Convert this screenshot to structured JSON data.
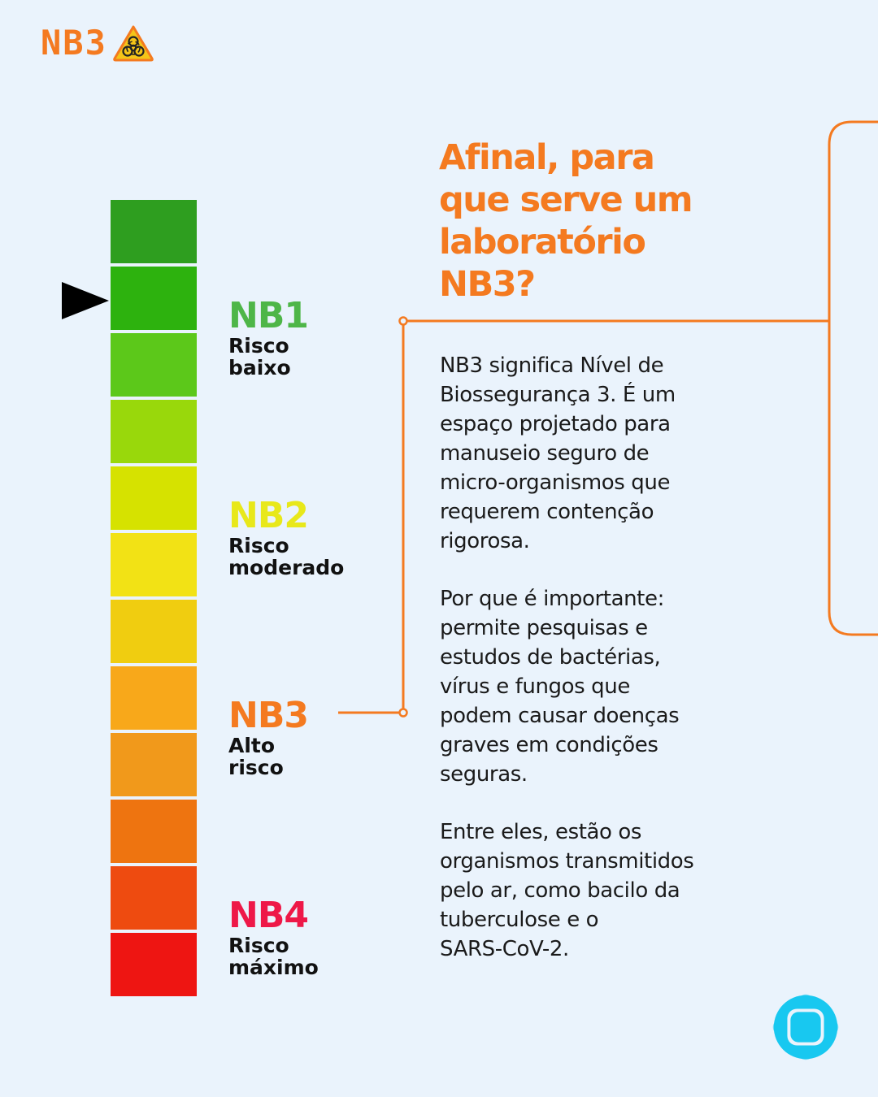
{
  "logo": {
    "text": "NB3",
    "icon": "biohazard-warning-icon",
    "color": "#F47A20"
  },
  "scale": {
    "segments": [
      "#2E9E1F",
      "#2DB20E",
      "#5CC81A",
      "#99D80B",
      "#D6E200",
      "#F2E215",
      "#F0CD10",
      "#F8A81A",
      "#F1991B",
      "#EE7410",
      "#EE4B10",
      "#EE1512"
    ],
    "pointer": "pointer-arrow-icon"
  },
  "levels": [
    {
      "code": "NB1",
      "description": "Risco\nbaixo",
      "color": "#4EB648"
    },
    {
      "code": "NB2",
      "description": "Risco\nmoderado",
      "color": "#E8E81A"
    },
    {
      "code": "NB3",
      "description": "Alto\nrisco",
      "color": "#F47A20"
    },
    {
      "code": "NB4",
      "description": "Risco\nmáximo",
      "color": "#EE1848"
    }
  ],
  "heading": "Afinal, para\nque serve um\nlaboratório\nNB3?",
  "paragraphs": [
    "NB3 significa Nível de\nBiossegurança 3. É um\nespaço projetado para\nmanuseio seguro de\nmicro-organismos que\nrequerem contenção\nrigorosa.",
    "Por que é importante:\npermite pesquisas e\nestudos de bactérias,\nvírus e fungos que\npodem causar doenças\ngraves em condições\nseguras.",
    "Entre eles, estão os\norganismos transmitidos\npelo ar, como bacilo da\ntuberculose e o\nSARS-CoV-2."
  ],
  "colors": {
    "background": "#EAF3FC",
    "accent": "#F47A20",
    "brand_blue": "#18C8F0"
  },
  "brand": {
    "icon": "brand-logo-icon"
  }
}
